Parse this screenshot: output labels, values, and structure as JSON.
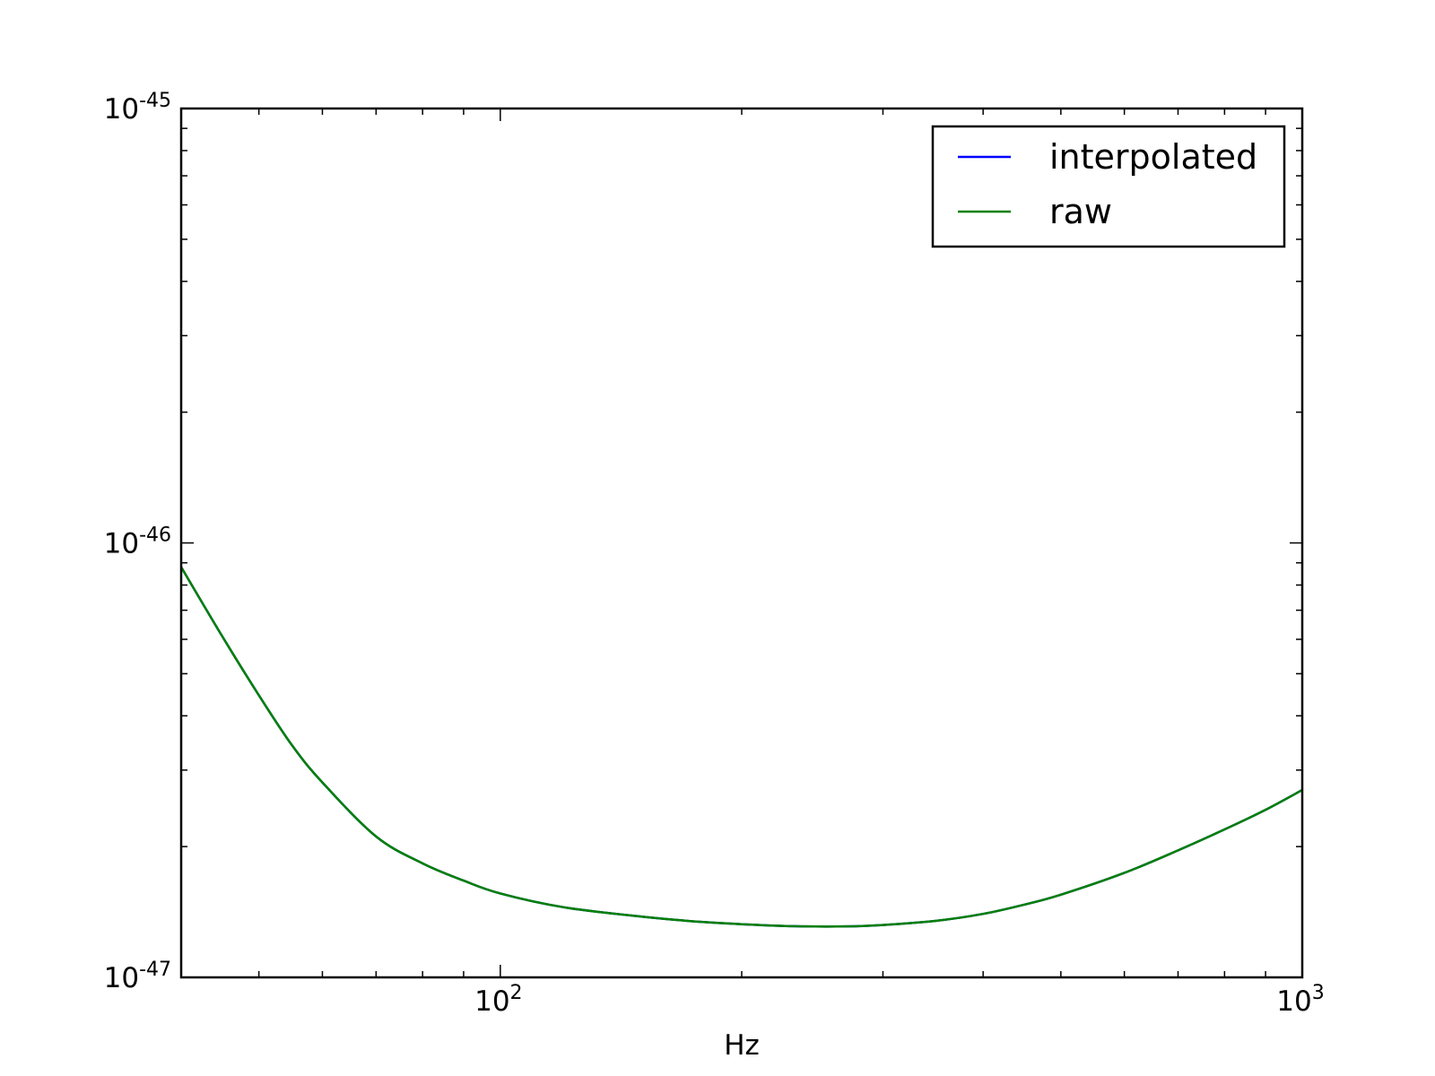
{
  "chart_data": {
    "type": "line",
    "title": "",
    "xlabel": "Hz",
    "ylabel": "",
    "xscale": "log",
    "yscale": "log",
    "xlim": [
      40,
      1000
    ],
    "ylim": [
      1e-47,
      1e-45
    ],
    "grid": false,
    "legend_position": "top-right",
    "x_ticks": [
      {
        "base": "10",
        "exp": "2",
        "value": 100
      },
      {
        "base": "10",
        "exp": "3",
        "value": 1000
      }
    ],
    "y_ticks": [
      {
        "base": "10",
        "exp": "-47",
        "value": 1e-47
      },
      {
        "base": "10",
        "exp": "-46",
        "value": 1e-46
      },
      {
        "base": "10",
        "exp": "-45",
        "value": 1e-45
      }
    ],
    "series": [
      {
        "name": "interpolated",
        "color": "#0000ff",
        "x": [
          40,
          45,
          50,
          55,
          60,
          70,
          80,
          90,
          100,
          120,
          150,
          180,
          210,
          240,
          270,
          300,
          350,
          400,
          450,
          500,
          600,
          700,
          800,
          900,
          1000
        ],
        "y": [
          8.8e-47,
          6.1e-47,
          4.46e-47,
          3.42e-47,
          2.81e-47,
          2.11e-47,
          1.83e-47,
          1.67e-47,
          1.56e-47,
          1.45e-47,
          1.38e-47,
          1.34e-47,
          1.32e-47,
          1.31e-47,
          1.31e-47,
          1.32e-47,
          1.35e-47,
          1.4e-47,
          1.47e-47,
          1.55e-47,
          1.74e-47,
          1.96e-47,
          2.19e-47,
          2.43e-47,
          2.7e-47
        ]
      },
      {
        "name": "raw",
        "color": "#008000",
        "x": [
          40,
          45,
          50,
          55,
          60,
          70,
          80,
          90,
          100,
          120,
          150,
          180,
          210,
          240,
          270,
          300,
          350,
          400,
          450,
          500,
          600,
          700,
          800,
          900,
          1000
        ],
        "y": [
          8.8e-47,
          6.1e-47,
          4.46e-47,
          3.42e-47,
          2.81e-47,
          2.11e-47,
          1.83e-47,
          1.67e-47,
          1.56e-47,
          1.45e-47,
          1.38e-47,
          1.34e-47,
          1.32e-47,
          1.31e-47,
          1.31e-47,
          1.32e-47,
          1.35e-47,
          1.4e-47,
          1.47e-47,
          1.55e-47,
          1.74e-47,
          1.96e-47,
          2.19e-47,
          2.43e-47,
          2.7e-47
        ]
      }
    ]
  }
}
